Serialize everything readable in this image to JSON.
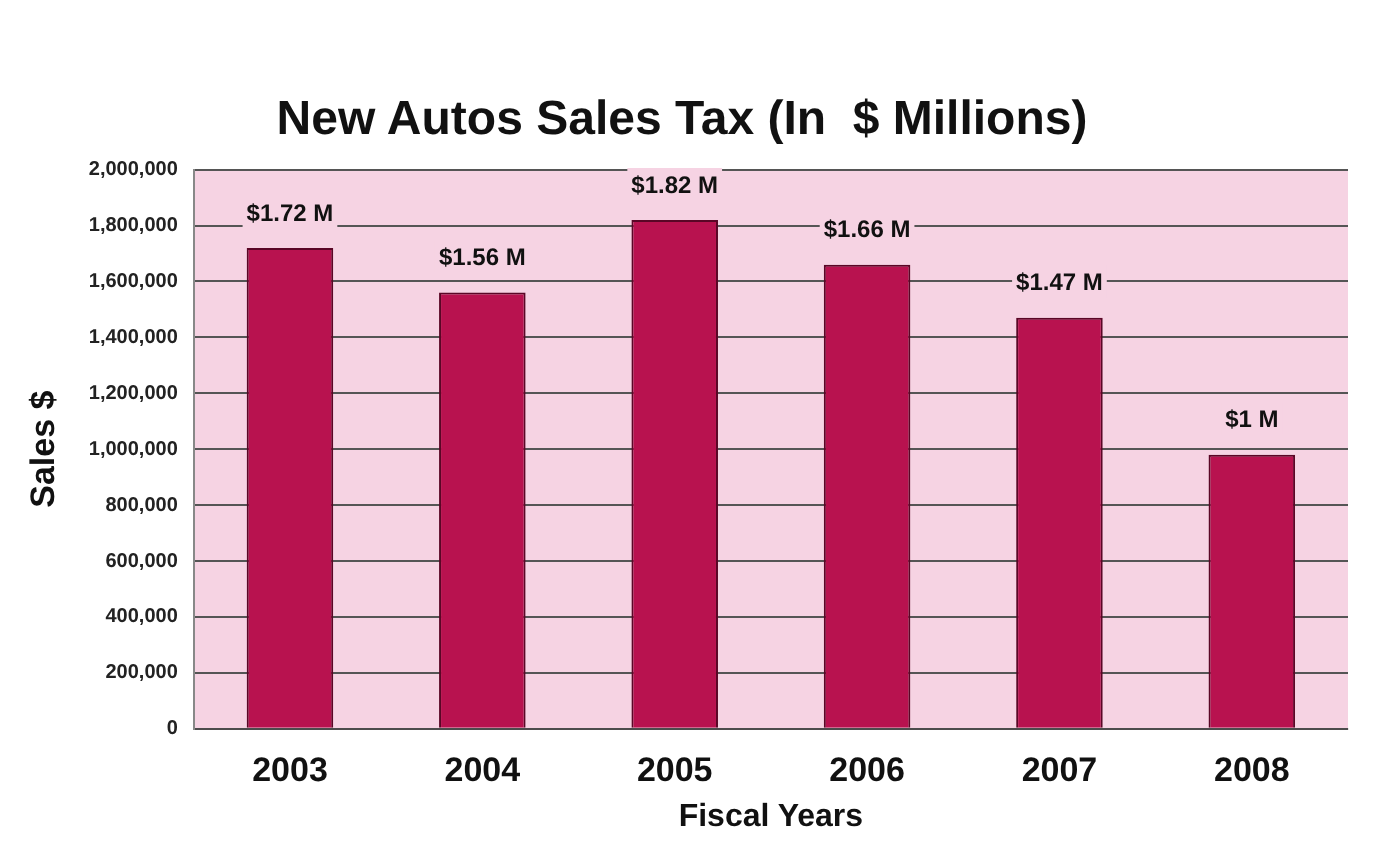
{
  "chart_data": {
    "type": "bar",
    "title": "New Autos Sales Tax (In  $ Millions)",
    "xlabel": "Fiscal Years",
    "ylabel": "Sales $",
    "categories": [
      "2003",
      "2004",
      "2005",
      "2006",
      "2007",
      "2008"
    ],
    "values": [
      1720000,
      1560000,
      1820000,
      1660000,
      1470000,
      980000
    ],
    "value_labels": [
      "$1.72 M",
      "$1.56 M",
      "$1.82 M",
      "$1.66 M",
      "$1.47 M",
      "$1 M"
    ],
    "color": "#b8124f",
    "ylim": [
      0,
      2000000
    ],
    "yticks": [
      0,
      {
        "value": 200000,
        "label": "200,000"
      },
      {
        "value": 400000,
        "label": "400,000"
      },
      {
        "value": 600000,
        "label": "600,000"
      },
      {
        "value": 800000,
        "label": "800,000"
      },
      {
        "value": 1000000,
        "label": "1,000,000"
      },
      {
        "value": 1200000,
        "label": "1,200,000"
      },
      {
        "value": 1400000,
        "label": "1,400,000"
      },
      {
        "value": 1600000,
        "label": "1,600,000"
      },
      {
        "value": 1800000,
        "label": "1,800,000"
      },
      {
        "value": 2000000,
        "label": "2,000,000"
      }
    ],
    "grid": "y",
    "legend": false
  }
}
